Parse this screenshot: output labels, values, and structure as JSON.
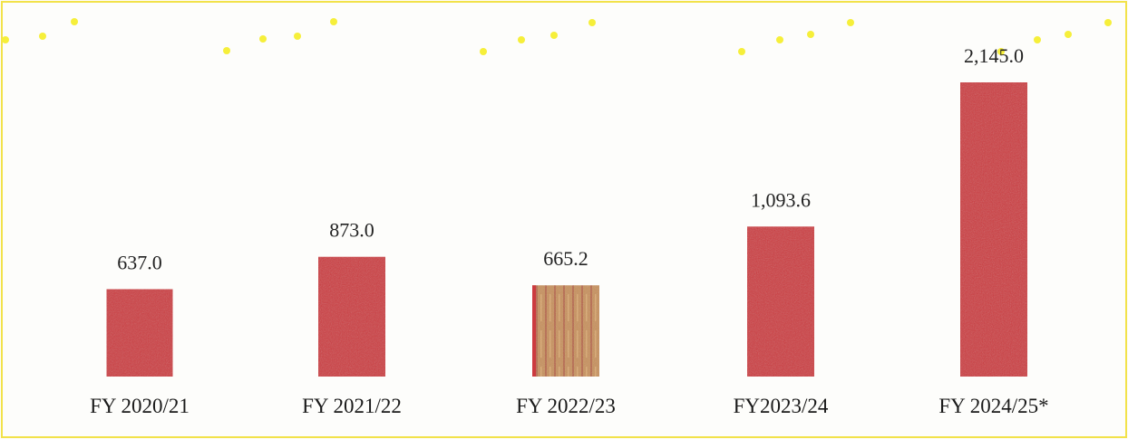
{
  "chart_data": {
    "type": "bar",
    "categories": [
      "FY 2020/21",
      "FY 2021/22",
      "FY 2022/23",
      "FY2023/24",
      "FY 2024/25*"
    ],
    "values": [
      637.0,
      873.0,
      665.2,
      1093.6,
      2145.0
    ],
    "value_labels": [
      "637.0",
      "873.0",
      "665.2",
      "1,093.6",
      "2,145.0"
    ],
    "title": "",
    "xlabel": "",
    "ylabel": "",
    "ylim": [
      0,
      2145.0
    ],
    "grid": false,
    "legend": "none"
  },
  "colors": {
    "bar": "#cc3a3f",
    "bar_alt": "#c98a5a",
    "frame": "#f2e24a",
    "dots": "#f6ef3a",
    "background": "#fdfdfb"
  }
}
